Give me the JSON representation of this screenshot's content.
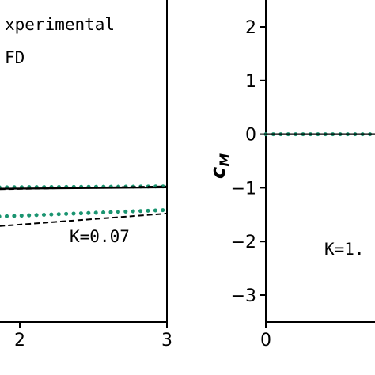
{
  "colors": {
    "experimental": "#1a9470",
    "cfd": "#000000"
  },
  "chart_data": [
    {
      "type": "line",
      "xlim": [
        0.8,
        3
      ],
      "ylim": [
        -2.35,
        1.0
      ],
      "xticks": [
        "2",
        "3"
      ],
      "xtick_values": [
        2,
        3
      ],
      "legend": [
        "Experimental",
        "CFD"
      ],
      "legend_visible_text": [
        "xperimental",
        "FD"
      ],
      "annotation": "K=0.07",
      "series": [
        {
          "name": "Experimental",
          "style": "dotted",
          "x": [
            0.8,
            3.0
          ],
          "y": [
            -1.0,
            -0.98
          ]
        },
        {
          "name": "CFD",
          "style": "solid",
          "x": [
            0.8,
            3.0
          ],
          "y": [
            -1.02,
            -0.99
          ]
        },
        {
          "name": "CFD",
          "style": "dashed",
          "x": [
            0.8,
            3.0
          ],
          "y": [
            -1.04,
            -0.98
          ]
        },
        {
          "name": "Experimental",
          "style": "dotted",
          "x": [
            0.8,
            3.0
          ],
          "y": [
            -1.38,
            -1.24
          ]
        },
        {
          "name": "CFD",
          "style": "dashed",
          "x": [
            0.8,
            3.0
          ],
          "y": [
            -1.55,
            -1.28
          ]
        }
      ]
    },
    {
      "type": "line",
      "ylabel": "c_M",
      "ylabel_main": "c",
      "ylabel_sub": "M",
      "xlim": [
        0,
        2
      ],
      "ylim": [
        -3.5,
        2.5
      ],
      "xticks": [
        "0"
      ],
      "xtick_values": [
        0
      ],
      "yticks": [
        "2",
        "1",
        "0",
        "−1",
        "−2",
        "−3"
      ],
      "ytick_values": [
        2,
        1,
        0,
        -1,
        -2,
        -3
      ],
      "annotation": "K=1.",
      "series": [
        {
          "name": "Experimental",
          "style": "dotted",
          "x": [
            0,
            2
          ],
          "y": [
            0,
            0
          ]
        },
        {
          "name": "CFD",
          "style": "solid",
          "x": [
            0,
            2
          ],
          "y": [
            0,
            0
          ]
        }
      ]
    }
  ]
}
